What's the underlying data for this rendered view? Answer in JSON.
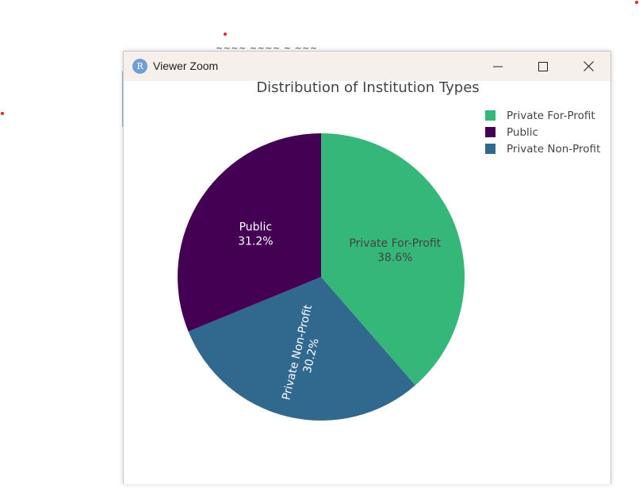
{
  "window": {
    "title": "Viewer Zoom",
    "app_icon_letter": "R",
    "minimize_icon": "minimize-icon",
    "maximize_icon": "maximize-icon",
    "close_icon": "close-icon"
  },
  "background": {
    "fragment_text": "~~~~ ~~~~ ~ ~~~"
  },
  "chart_data": {
    "type": "pie",
    "title": "Distribution of Institution Types",
    "slices": [
      {
        "label": "Private For-Profit",
        "value": 38.6,
        "color": "#35b779",
        "text_color": "#444444"
      },
      {
        "label": "Private Non-Profit",
        "value": 30.2,
        "color": "#31688e",
        "text_color": "#ffffff"
      },
      {
        "label": "Public",
        "value": 31.2,
        "color": "#440154",
        "text_color": "#ffffff"
      }
    ],
    "legend": {
      "placement": "top-right",
      "entries": [
        "Private For-Profit",
        "Public",
        "Private Non-Profit"
      ]
    },
    "start_angle": "12 o'clock",
    "direction": "clockwise",
    "percent_suffix": "%"
  }
}
